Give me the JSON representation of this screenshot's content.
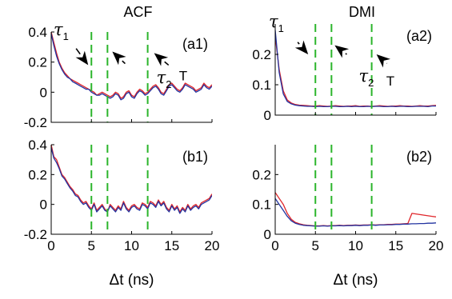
{
  "chart_data": [
    {
      "id": "a1",
      "type": "line",
      "title": "ACF",
      "panel_label": "(a1)",
      "xlim": [
        0,
        20
      ],
      "ylim": [
        -0.2,
        0.4
      ],
      "xticks": [
        0,
        5,
        10,
        15,
        20
      ],
      "yticks": [
        -0.2,
        0,
        0.2,
        0.4
      ],
      "ytick_labels": [
        "-0.2",
        "0",
        "0.2",
        "0.4"
      ],
      "xtick_labels_visible": false,
      "vlines": [
        5,
        7,
        12
      ],
      "vline_color": "#2bb52b",
      "annotations": [
        {
          "kind": "tau",
          "text": "τ",
          "sub": "1",
          "x": 0.3,
          "y": 0.38
        },
        {
          "kind": "tau",
          "text": "τ",
          "sub": "2",
          "x": 13.1,
          "y": 0.06
        },
        {
          "kind": "text",
          "text": "T",
          "x": 15.9,
          "y": 0.08
        }
      ],
      "arrows": [
        {
          "from": [
            3.1,
            0.29
          ],
          "to": [
            4.6,
            0.18
          ]
        },
        {
          "from": [
            9.2,
            0.19
          ],
          "to": [
            7.6,
            0.27
          ]
        },
        {
          "from": [
            14.6,
            0.18
          ],
          "to": [
            12.8,
            0.26
          ]
        }
      ],
      "series": [
        {
          "color": "#e0262a",
          "values": [
            0.4,
            0.33,
            0.26,
            0.2,
            0.16,
            0.13,
            0.11,
            0.09,
            0.08,
            0.07,
            0.06,
            0.05,
            0.04,
            0.03,
            0.02,
            0.01,
            0.0,
            -0.02,
            -0.01,
            0.0,
            -0.01,
            -0.02,
            -0.03,
            -0.02,
            0.0,
            -0.01,
            -0.04,
            -0.03,
            0.0,
            0.01,
            -0.02,
            -0.03,
            0.0,
            0.02,
            0.01,
            -0.01,
            0.0,
            0.02,
            0.04,
            0.05,
            0.03,
            0.0,
            -0.01,
            0.02,
            0.05,
            0.06,
            0.04,
            0.02,
            0.01,
            0.03,
            0.06,
            0.05,
            0.04,
            0.03,
            0.01,
            0.02,
            0.03,
            0.06,
            0.04,
            0.03,
            0.05
          ]
        },
        {
          "color": "#2233a0",
          "values": [
            0.39,
            0.31,
            0.24,
            0.19,
            0.15,
            0.12,
            0.1,
            0.09,
            0.07,
            0.06,
            0.05,
            0.04,
            0.03,
            0.02,
            0.02,
            0.0,
            -0.01,
            -0.02,
            -0.02,
            -0.01,
            -0.02,
            -0.03,
            -0.04,
            -0.03,
            -0.01,
            -0.02,
            -0.05,
            -0.04,
            -0.01,
            0.0,
            -0.03,
            -0.04,
            -0.01,
            0.01,
            0.0,
            -0.02,
            -0.01,
            0.01,
            0.03,
            0.04,
            0.02,
            -0.01,
            -0.02,
            0.01,
            0.04,
            0.05,
            0.03,
            0.01,
            0.0,
            0.02,
            0.05,
            0.04,
            0.03,
            0.02,
            0.0,
            0.01,
            0.02,
            0.05,
            0.03,
            0.02,
            0.04
          ]
        }
      ]
    },
    {
      "id": "a2",
      "type": "line",
      "title": "DMI",
      "panel_label": "(a2)",
      "xlim": [
        0,
        20
      ],
      "ylim": [
        0,
        0.3
      ],
      "xticks": [
        0,
        5,
        10,
        15,
        20
      ],
      "yticks": [
        0,
        0.1,
        0.2
      ],
      "ytick_labels": [
        "0",
        "0.1",
        "0.2"
      ],
      "xtick_labels_visible": false,
      "vlines": [
        5,
        7,
        12
      ],
      "vline_color": "#2bb52b",
      "annotations": [
        {
          "kind": "tau",
          "text": "τ",
          "sub": "1",
          "x": -0.8,
          "y": 0.29
        },
        {
          "kind": "tau",
          "text": "τ",
          "sub": "2",
          "x": 10.4,
          "y": 0.11
        },
        {
          "kind": "text",
          "text": "T",
          "x": 13.8,
          "y": 0.098
        }
      ],
      "arrows": [
        {
          "from": [
            2.8,
            0.24
          ],
          "to": [
            4.1,
            0.2
          ]
        },
        {
          "from": [
            8.9,
            0.2
          ],
          "to": [
            7.4,
            0.23
          ]
        },
        {
          "from": [
            13.9,
            0.17
          ],
          "to": [
            12.6,
            0.2
          ]
        }
      ],
      "series": [
        {
          "color": "#e0262a",
          "values": [
            0.26,
            0.15,
            0.08,
            0.05,
            0.04,
            0.035,
            0.033,
            0.032,
            0.031,
            0.03,
            0.03,
            0.031,
            0.03,
            0.029,
            0.03,
            0.031,
            0.03,
            0.029,
            0.03,
            0.03,
            0.031,
            0.029,
            0.03,
            0.03,
            0.029,
            0.03,
            0.031,
            0.03,
            0.029,
            0.03,
            0.03,
            0.031,
            0.03,
            0.03,
            0.029,
            0.03,
            0.031,
            0.03,
            0.03,
            0.031,
            0.032
          ]
        },
        {
          "color": "#2233a0",
          "values": [
            0.28,
            0.14,
            0.07,
            0.045,
            0.037,
            0.033,
            0.031,
            0.03,
            0.029,
            0.029,
            0.028,
            0.029,
            0.028,
            0.028,
            0.029,
            0.029,
            0.028,
            0.028,
            0.029,
            0.028,
            0.029,
            0.028,
            0.028,
            0.029,
            0.028,
            0.029,
            0.029,
            0.028,
            0.028,
            0.029,
            0.028,
            0.029,
            0.029,
            0.028,
            0.028,
            0.029,
            0.029,
            0.029,
            0.028,
            0.03,
            0.03
          ]
        }
      ]
    },
    {
      "id": "b1",
      "type": "line",
      "title": "",
      "panel_label": "(b1)",
      "xlim": [
        0,
        20
      ],
      "ylim": [
        -0.2,
        0.4
      ],
      "xticks": [
        0,
        5,
        10,
        15,
        20
      ],
      "xtick_labels": [
        "0",
        "5",
        "10",
        "15",
        "20"
      ],
      "yticks": [
        -0.2,
        0,
        0.2,
        0.4
      ],
      "ytick_labels": [
        "-0.2",
        "0",
        "0.2",
        "0.4"
      ],
      "xtick_labels_visible": true,
      "xlabel": "Δt (ns)",
      "vlines": [
        5,
        7,
        12
      ],
      "vline_color": "#2bb52b",
      "annotations": [],
      "arrows": [],
      "series": [
        {
          "color": "#e0262a",
          "values": [
            0.4,
            0.32,
            0.3,
            0.25,
            0.2,
            0.18,
            0.15,
            0.12,
            0.1,
            0.07,
            0.06,
            0.03,
            0.01,
            0.02,
            -0.01,
            -0.03,
            0.01,
            -0.04,
            -0.02,
            0.0,
            -0.03,
            -0.05,
            0.0,
            -0.02,
            -0.04,
            -0.01,
            -0.03,
            0.02,
            -0.02,
            -0.04,
            -0.01,
            0.0,
            -0.02,
            -0.03,
            0.01,
            0.0,
            -0.02,
            0.02,
            0.01,
            -0.01,
            0.03,
            0.0,
            0.02,
            -0.02,
            -0.04,
            0.0,
            -0.03,
            -0.01,
            -0.05,
            -0.02,
            -0.04,
            0.0,
            -0.03,
            -0.01,
            0.0,
            -0.02,
            0.01,
            0.02,
            0.03,
            0.04,
            0.07
          ]
        },
        {
          "color": "#2233a0",
          "values": [
            0.38,
            0.31,
            0.28,
            0.24,
            0.19,
            0.17,
            0.14,
            0.11,
            0.09,
            0.06,
            0.05,
            0.02,
            0.0,
            0.01,
            -0.02,
            -0.04,
            0.0,
            -0.05,
            -0.03,
            -0.01,
            -0.04,
            -0.05,
            -0.01,
            -0.03,
            -0.05,
            -0.02,
            -0.04,
            0.01,
            -0.03,
            -0.05,
            -0.02,
            -0.01,
            -0.03,
            -0.04,
            0.0,
            -0.01,
            -0.03,
            0.01,
            0.0,
            -0.02,
            0.02,
            -0.01,
            0.01,
            -0.03,
            -0.05,
            -0.01,
            -0.04,
            -0.02,
            -0.06,
            -0.03,
            -0.05,
            -0.01,
            -0.04,
            -0.02,
            -0.01,
            -0.03,
            0.0,
            0.01,
            0.02,
            0.03,
            0.06
          ]
        }
      ]
    },
    {
      "id": "b2",
      "type": "line",
      "title": "",
      "panel_label": "(b2)",
      "xlim": [
        0,
        20
      ],
      "ylim": [
        0,
        0.3
      ],
      "xticks": [
        0,
        5,
        10,
        15,
        20
      ],
      "xtick_labels": [
        "0",
        "5",
        "10",
        "15",
        "20"
      ],
      "yticks": [
        0,
        0.1,
        0.2
      ],
      "ytick_labels": [
        "0",
        "0.1",
        "0.2"
      ],
      "xtick_labels_visible": true,
      "xlabel": "Δt (ns)",
      "vlines": [
        5,
        7,
        12
      ],
      "vline_color": "#2bb52b",
      "annotations": [],
      "arrows": [],
      "series": [
        {
          "color": "#e0262a",
          "values": [
            0.14,
            0.12,
            0.1,
            0.07,
            0.05,
            0.04,
            0.035,
            0.032,
            0.03,
            0.029,
            0.028,
            0.028,
            0.029,
            0.028,
            0.029,
            0.029,
            0.03,
            0.029,
            0.03,
            0.03,
            0.031,
            0.03,
            0.031,
            0.031,
            0.032,
            0.031,
            0.032,
            0.032,
            0.033,
            0.033,
            0.034,
            0.034,
            0.035,
            0.036,
            0.07,
            0.068,
            0.066,
            0.064,
            0.062,
            0.06,
            0.058
          ]
        },
        {
          "color": "#2233a0",
          "values": [
            0.12,
            0.1,
            0.08,
            0.06,
            0.045,
            0.037,
            0.033,
            0.03,
            0.029,
            0.028,
            0.027,
            0.027,
            0.028,
            0.027,
            0.028,
            0.028,
            0.029,
            0.028,
            0.029,
            0.029,
            0.03,
            0.029,
            0.03,
            0.03,
            0.031,
            0.03,
            0.031,
            0.031,
            0.032,
            0.032,
            0.033,
            0.033,
            0.034,
            0.034,
            0.035,
            0.035,
            0.036,
            0.036,
            0.037,
            0.037,
            0.038
          ]
        }
      ]
    }
  ]
}
